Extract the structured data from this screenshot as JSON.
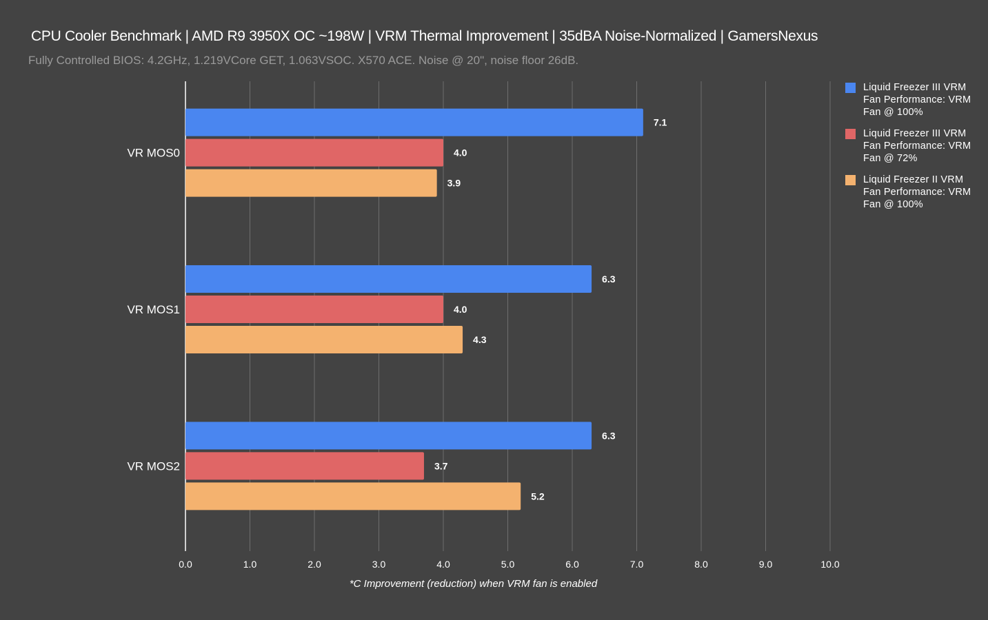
{
  "chart_data": {
    "type": "bar",
    "orientation": "horizontal",
    "title": "CPU Cooler Benchmark | AMD R9 3950X OC ~198W | VRM Thermal Improvement | 35dBA Noise-Normalized | GamersNexus",
    "subtitle": "Fully Controlled BIOS: 4.2GHz, 1.219VCore GET, 1.063VSOC. X570 ACE. Noise @ 20\", noise floor 26dB.",
    "categories": [
      "VR MOS0",
      "VR MOS1",
      "VR MOS2"
    ],
    "series": [
      {
        "name": "Liquid Freezer III VRM Fan Performance: VRM Fan @ 100%",
        "color": "#4a86f0",
        "values": [
          7.1,
          6.3,
          6.3
        ]
      },
      {
        "name": "Liquid Freezer III VRM Fan Performance: VRM Fan @ 72%",
        "color": "#e06666",
        "values": [
          4.0,
          4.0,
          3.7
        ]
      },
      {
        "name": "Liquid Freezer II VRM Fan Performance: VRM Fan @ 100%",
        "color": "#f4b26f",
        "values": [
          3.9,
          4.3,
          5.2
        ]
      }
    ],
    "data_labels": [
      [
        "7.1",
        "6.3",
        "6.3"
      ],
      [
        "4.0",
        "4.0",
        "3.7"
      ],
      [
        "3.9",
        "4.3",
        "5.2"
      ]
    ],
    "xlabel": "*C Improvement (reduction) when VRM fan is enabled",
    "ylabel": "",
    "xlim": [
      0,
      10
    ],
    "xticks": [
      "0.0",
      "1.0",
      "2.0",
      "3.0",
      "4.0",
      "5.0",
      "6.0",
      "7.0",
      "8.0",
      "9.0",
      "10.0"
    ],
    "grid": true,
    "legend_position": "right",
    "background": "#434343"
  }
}
